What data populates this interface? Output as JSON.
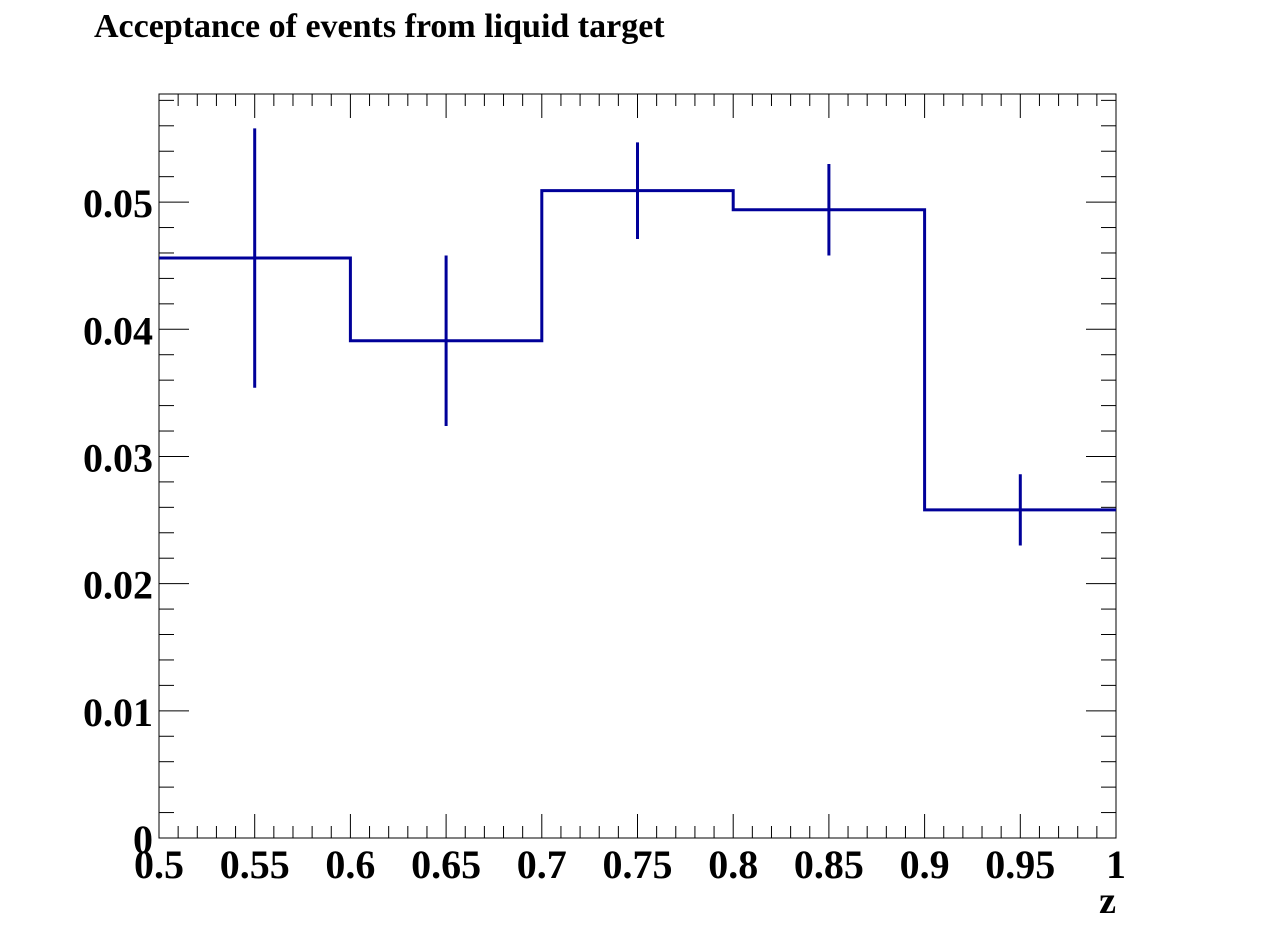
{
  "chart_data": {
    "type": "histogram",
    "title": "Acceptance of events from liquid target",
    "xlabel": "z",
    "ylabel": "",
    "xlim": [
      0.5,
      1.0
    ],
    "ylim": [
      0,
      0.0585
    ],
    "grid": false,
    "legend": "none",
    "line_color": "#000099",
    "x_ticks": [
      "0.5",
      "0.55",
      "0.6",
      "0.65",
      "0.7",
      "0.75",
      "0.8",
      "0.85",
      "0.9",
      "0.95",
      "1"
    ],
    "y_ticks": [
      "0",
      "0.01",
      "0.02",
      "0.03",
      "0.04",
      "0.05"
    ],
    "bins": [
      {
        "x_low": 0.5,
        "x_high": 0.6,
        "center": 0.55,
        "value": 0.0456,
        "error": 0.0102
      },
      {
        "x_low": 0.6,
        "x_high": 0.7,
        "center": 0.65,
        "value": 0.0391,
        "error": 0.0067
      },
      {
        "x_low": 0.7,
        "x_high": 0.8,
        "center": 0.75,
        "value": 0.0509,
        "error": 0.0038
      },
      {
        "x_low": 0.8,
        "x_high": 0.9,
        "center": 0.85,
        "value": 0.0494,
        "error": 0.0036
      },
      {
        "x_low": 0.9,
        "x_high": 1.0,
        "center": 0.95,
        "value": 0.0258,
        "error": 0.0028
      }
    ]
  }
}
